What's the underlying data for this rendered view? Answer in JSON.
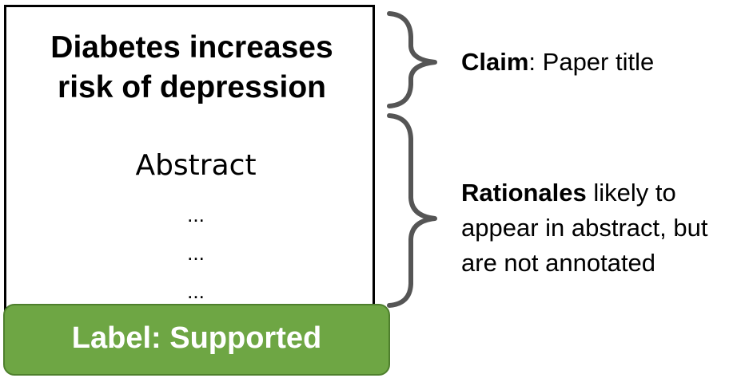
{
  "paper": {
    "title_line1": "Diabetes increases",
    "title_line2": "risk of depression",
    "abstract_heading": "Abstract",
    "ellipses": [
      "...",
      "...",
      "..."
    ]
  },
  "label": {
    "text": "Label: Supported",
    "background_color": "#6ea644"
  },
  "annotations": {
    "claim": {
      "bold": "Claim",
      "rest": ": Paper title"
    },
    "rationales": {
      "bold": "Rationales",
      "rest_line1": " likely to",
      "line2": "appear in abstract, but",
      "line3": "are not annotated"
    }
  },
  "colors": {
    "brace": "#555555",
    "border": "#000000"
  }
}
